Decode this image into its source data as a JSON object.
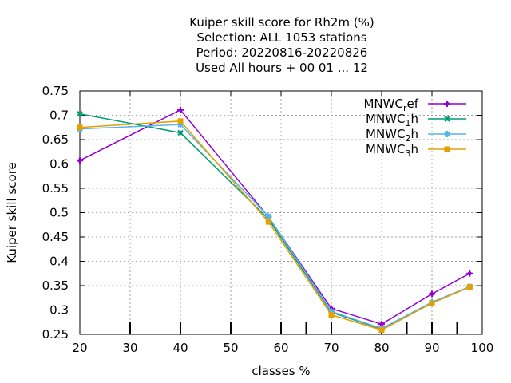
{
  "chart_data": {
    "type": "line",
    "title_lines": [
      "Kuiper skill score  for Rh2m (%)",
      "Selection: ALL   1053 stations",
      "Period: 20220816-20220826",
      "Used  All hours + 00 01 ... 12"
    ],
    "xlabel": "classes %",
    "ylabel": "Kuiper skill score",
    "xlim": [
      20,
      100
    ],
    "ylim": [
      0.25,
      0.75
    ],
    "xticks": [
      20,
      30,
      40,
      50,
      60,
      70,
      80,
      90,
      100
    ],
    "yticks": [
      0.25,
      0.3,
      0.35,
      0.4,
      0.45,
      0.5,
      0.55,
      0.6,
      0.65,
      0.7,
      0.75
    ],
    "xtick_labels": [
      "20",
      "30",
      "40",
      "50",
      "60",
      "70",
      "80",
      "90",
      "100"
    ],
    "ytick_labels": [
      "0.25",
      "0.3",
      "0.35",
      "0.4",
      "0.45",
      "0.5",
      "0.55",
      "0.6",
      "0.65",
      "0.7",
      "0.75"
    ],
    "grid": true,
    "legend_position": "top-right",
    "bottom_tick_marks_x": [
      30,
      40,
      50,
      60,
      65,
      70,
      80,
      85,
      90,
      95
    ],
    "series": [
      {
        "name": "MNWC_ref",
        "legend_base": "MNWC",
        "legend_sub": "r",
        "legend_tail": "ef",
        "color": "#9400d3",
        "marker": "plus",
        "x": [
          20,
          40,
          57.5,
          70,
          80,
          90,
          97.5
        ],
        "y": [
          0.607,
          0.711,
          0.491,
          0.303,
          0.271,
          0.333,
          0.375
        ]
      },
      {
        "name": "MNWC_1h",
        "legend_base": "MNWC",
        "legend_sub": "1",
        "legend_tail": "h",
        "color": "#009e73",
        "marker": "cross",
        "x": [
          20,
          40,
          57.5,
          70,
          80,
          90,
          97.5
        ],
        "y": [
          0.703,
          0.664,
          0.487,
          0.295,
          0.261,
          0.315,
          0.347
        ]
      },
      {
        "name": "MNWC_2h",
        "legend_base": "MNWC",
        "legend_sub": "2",
        "legend_tail": "h",
        "color": "#56b4e9",
        "marker": "star",
        "x": [
          20,
          40,
          57.5,
          70,
          80,
          90,
          97.5
        ],
        "y": [
          0.672,
          0.681,
          0.492,
          0.297,
          0.262,
          0.316,
          0.348
        ]
      },
      {
        "name": "MNWC_3h",
        "legend_base": "MNWC",
        "legend_sub": "3",
        "legend_tail": "h",
        "color": "#e69f00",
        "marker": "square",
        "x": [
          20,
          40,
          57.5,
          70,
          80,
          90,
          97.5
        ],
        "y": [
          0.675,
          0.688,
          0.481,
          0.29,
          0.259,
          0.314,
          0.347
        ]
      }
    ]
  }
}
